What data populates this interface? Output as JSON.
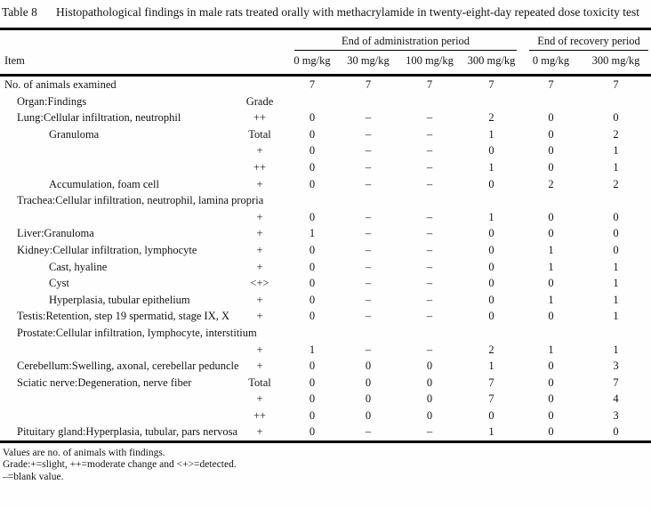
{
  "title": {
    "label": "Table 8",
    "caption": "Histopathological findings in male rats treated orally with methacrylamide in twenty-eight-day repeated dose toxicity test"
  },
  "header": {
    "item": "Item",
    "groups": [
      {
        "label": "End of administration period",
        "cols": [
          "0 mg/kg",
          "30 mg/kg",
          "100 mg/kg",
          "300 mg/kg"
        ]
      },
      {
        "label": "End of recovery period",
        "cols": [
          "0 mg/kg",
          "300 mg/kg"
        ]
      }
    ]
  },
  "rows": [
    {
      "label": "No. of animals examined",
      "indent": 0,
      "grade": "",
      "span": false,
      "values": [
        "7",
        "7",
        "7",
        "7",
        "7",
        "7"
      ]
    },
    {
      "label": "Organ:Findings",
      "indent": 1,
      "grade": "Grade",
      "span": false,
      "values": [
        "",
        "",
        "",
        "",
        "",
        ""
      ]
    },
    {
      "label": "Lung:Cellular infiltration, neutrophil",
      "indent": 1,
      "grade": "++",
      "span": false,
      "values": [
        "0",
        "–",
        "–",
        "2",
        "0",
        "0"
      ]
    },
    {
      "label": "Granuloma",
      "indent": 2,
      "grade": "Total",
      "span": false,
      "values": [
        "0",
        "–",
        "–",
        "1",
        "0",
        "2"
      ]
    },
    {
      "label": "",
      "indent": 2,
      "grade": "+",
      "span": false,
      "values": [
        "0",
        "–",
        "–",
        "0",
        "0",
        "1"
      ]
    },
    {
      "label": "",
      "indent": 2,
      "grade": "++",
      "span": false,
      "values": [
        "0",
        "–",
        "–",
        "1",
        "0",
        "1"
      ]
    },
    {
      "label": "Accumulation, foam cell",
      "indent": 2,
      "grade": "+",
      "span": false,
      "values": [
        "0",
        "–",
        "–",
        "0",
        "2",
        "2"
      ]
    },
    {
      "label": "Trachea:Cellular infiltration, neutrophil, lamina propria",
      "indent": 1,
      "grade": "",
      "span": true,
      "values": [
        "",
        "",
        "",
        "",
        "",
        ""
      ]
    },
    {
      "label": "",
      "indent": 2,
      "grade": "+",
      "span": false,
      "values": [
        "0",
        "–",
        "–",
        "1",
        "0",
        "0"
      ]
    },
    {
      "label": "Liver:Granuloma",
      "indent": 1,
      "grade": "+",
      "span": false,
      "values": [
        "1",
        "–",
        "–",
        "0",
        "0",
        "0"
      ]
    },
    {
      "label": "Kidney:Cellular infiltration, lymphocyte",
      "indent": 1,
      "grade": "+",
      "span": false,
      "values": [
        "0",
        "–",
        "–",
        "0",
        "1",
        "0"
      ]
    },
    {
      "label": "Cast, hyaline",
      "indent": 2,
      "grade": "+",
      "span": false,
      "values": [
        "0",
        "–",
        "–",
        "0",
        "1",
        "1"
      ]
    },
    {
      "label": "Cyst",
      "indent": 2,
      "grade": "<+>",
      "span": false,
      "values": [
        "0",
        "–",
        "–",
        "0",
        "0",
        "1"
      ]
    },
    {
      "label": "Hyperplasia, tubular epithelium",
      "indent": 2,
      "grade": "+",
      "span": false,
      "values": [
        "0",
        "–",
        "–",
        "0",
        "1",
        "1"
      ]
    },
    {
      "label": "Testis:Retention, step 19 spermatid, stage IX, X",
      "indent": 1,
      "grade": "+",
      "span": false,
      "values": [
        "0",
        "–",
        "–",
        "0",
        "0",
        "1"
      ]
    },
    {
      "label": "Prostate:Cellular infiltration, lymphocyte, interstitium",
      "indent": 1,
      "grade": "",
      "span": true,
      "values": [
        "",
        "",
        "",
        "",
        "",
        ""
      ]
    },
    {
      "label": "",
      "indent": 2,
      "grade": "+",
      "span": false,
      "values": [
        "1",
        "–",
        "–",
        "2",
        "1",
        "1"
      ]
    },
    {
      "label": "Cerebellum:Swelling, axonal, cerebellar peduncle",
      "indent": 1,
      "grade": "+",
      "span": false,
      "values": [
        "0",
        "0",
        "0",
        "1",
        "0",
        "3"
      ]
    },
    {
      "label": "Sciatic nerve:Degeneration, nerve fiber",
      "indent": 1,
      "grade": "Total",
      "span": false,
      "values": [
        "0",
        "0",
        "0",
        "7",
        "0",
        "7"
      ]
    },
    {
      "label": "",
      "indent": 2,
      "grade": "+",
      "span": false,
      "values": [
        "0",
        "0",
        "0",
        "7",
        "0",
        "4"
      ]
    },
    {
      "label": "",
      "indent": 2,
      "grade": "++",
      "span": false,
      "values": [
        "0",
        "0",
        "0",
        "0",
        "0",
        "3"
      ]
    },
    {
      "label": "Pituitary gland:Hyperplasia, tubular, pars nervosa",
      "indent": 1,
      "grade": "+",
      "span": false,
      "values": [
        "0",
        "–",
        "–",
        "1",
        "0",
        "0"
      ]
    }
  ],
  "footnotes": [
    "Values are no. of animals with findings.",
    "Grade:+=slight, ++=moderate change and <+>=detected.",
    "–=blank value."
  ]
}
